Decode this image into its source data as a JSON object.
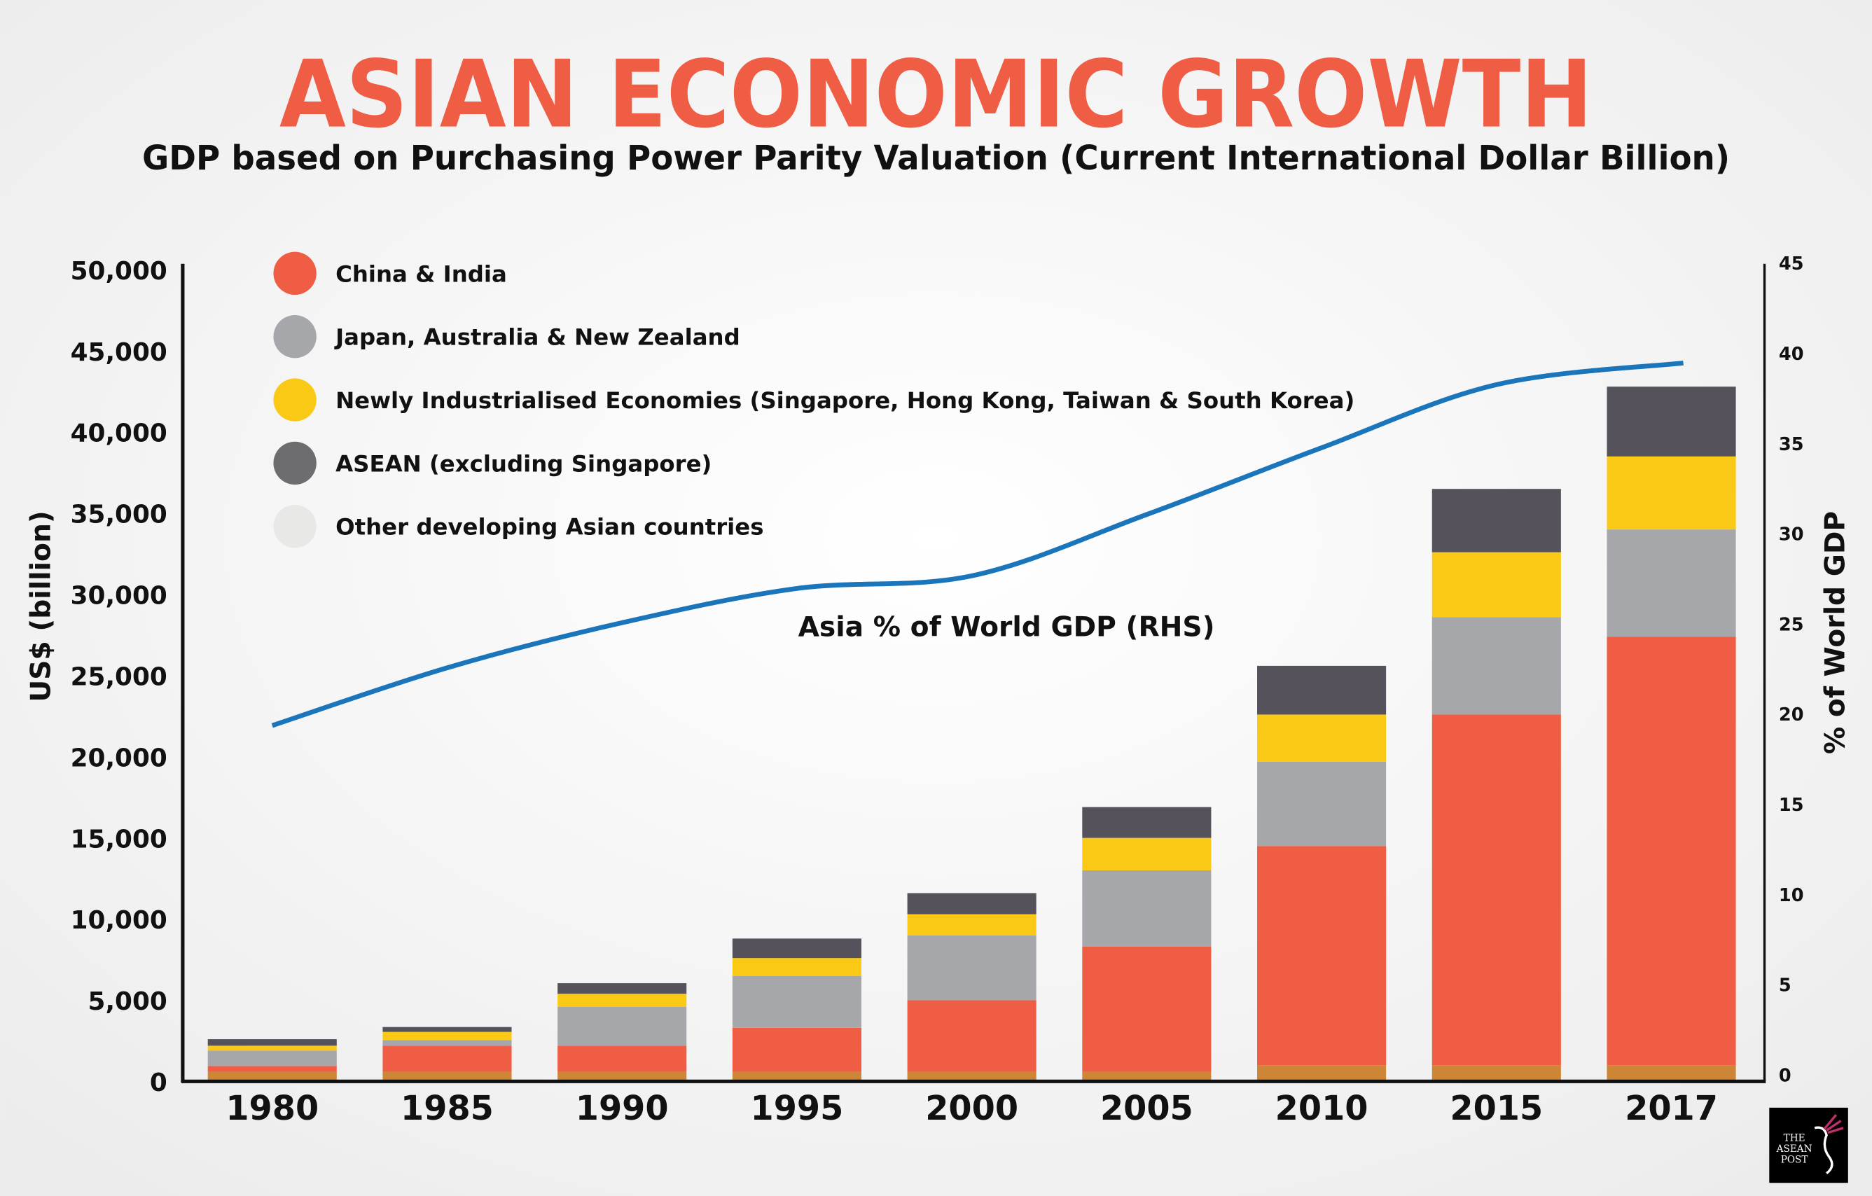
{
  "title": "ASIAN ECONOMIC GROWTH",
  "subtitle": "GDP based on Purchasing Power Parity Valuation (Current International Dollar Billion)",
  "logo_text": "THE ASEAN POST",
  "chart_data": {
    "type": "bar",
    "stacked": true,
    "categories": [
      "1980",
      "1985",
      "1990",
      "1995",
      "2000",
      "2005",
      "2010",
      "2015",
      "2017"
    ],
    "ylabel": "US$ (billion)",
    "ylim": [
      0,
      50000
    ],
    "yticks": [
      "0",
      "5,000",
      "10,000",
      "15,000",
      "20,000",
      "25,000",
      "30,000",
      "35,000",
      "40,000",
      "45,000",
      "50,000"
    ],
    "y2label": "% of World GDP",
    "y2lim": [
      0,
      45
    ],
    "y2ticks": [
      "0",
      "5",
      "10",
      "15",
      "20",
      "25",
      "30",
      "35",
      "40",
      "45"
    ],
    "grid": false,
    "legend_placement": "top-left",
    "series": [
      {
        "name": "Other developing Asian countries",
        "color": "#CD8536",
        "legend_color": "#E8E8E6",
        "values": [
          600,
          600,
          600,
          600,
          600,
          600,
          1000,
          1000,
          1000
        ]
      },
      {
        "name": "China & India",
        "color": "#F05D45",
        "values": [
          350,
          1600,
          1600,
          2700,
          4400,
          7700,
          13500,
          21600,
          26400
        ]
      },
      {
        "name": "Japan, Australia & New Zealand",
        "color": "#A5A7AA",
        "values": [
          950,
          350,
          2400,
          3200,
          4000,
          4700,
          5200,
          6000,
          6600
        ]
      },
      {
        "name": "Newly Industrialised Economies (Singapore, Hong Kong, Taiwan & South Korea)",
        "color": "#F9C916",
        "values": [
          300,
          500,
          800,
          1100,
          1300,
          2000,
          2900,
          4000,
          4500
        ]
      },
      {
        "name": "ASEAN (excluding Singapore)",
        "color": "#55525B",
        "legend_color": "#6D6D70",
        "values": [
          400,
          300,
          650,
          1200,
          1300,
          1900,
          3000,
          3900,
          4300
        ]
      }
    ],
    "legend_order": [
      1,
      2,
      3,
      4,
      0
    ],
    "line": {
      "name": "Asia % of World GDP (RHS)",
      "color": "#1B75BB",
      "axis": "right",
      "values": [
        19.4,
        22.6,
        25.1,
        27.0,
        27.7,
        31.1,
        34.8,
        38.3,
        39.5
      ]
    }
  }
}
